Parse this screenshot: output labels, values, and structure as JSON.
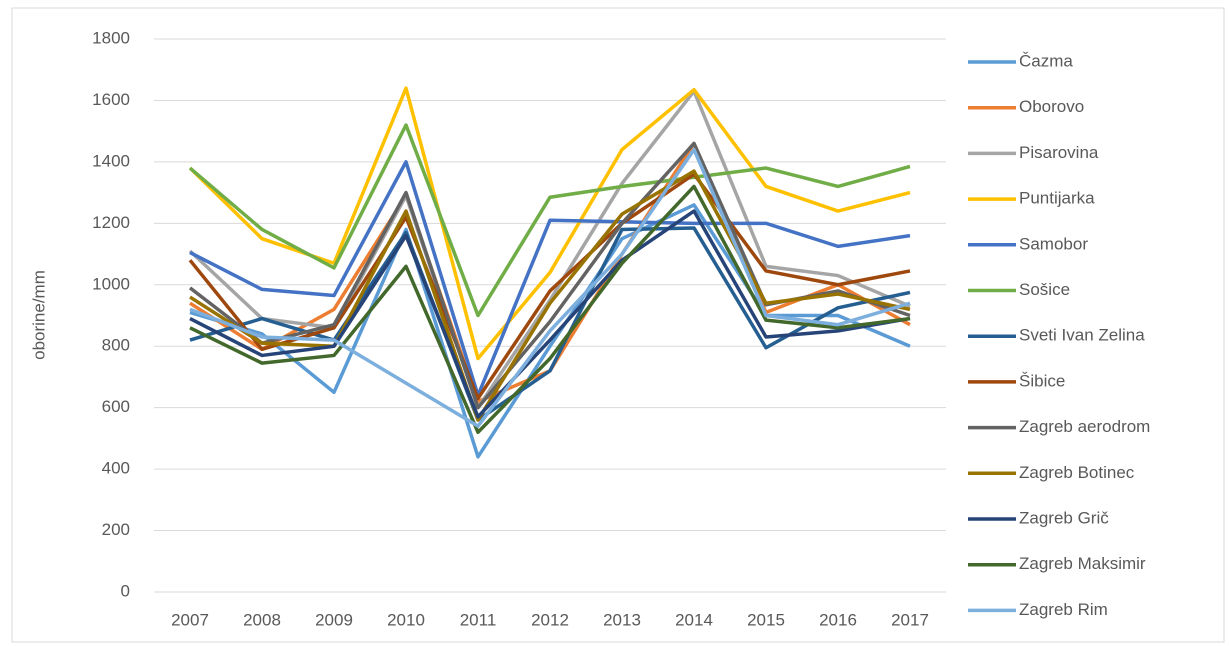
{
  "chart_data": {
    "type": "line",
    "y_label": "oborine/mm",
    "x": [
      "2007",
      "2008",
      "2009",
      "2010",
      "2011",
      "2012",
      "2013",
      "2014",
      "2015",
      "2016",
      "2017"
    ],
    "ylim": [
      0,
      1800
    ],
    "yticks": [
      0,
      200,
      400,
      600,
      800,
      1000,
      1200,
      1400,
      1600,
      1800
    ],
    "grid": true,
    "legend": "right",
    "series": [
      {
        "name": "Čazma",
        "color": "#5B9BD5",
        "values": [
          910,
          840,
          650,
          1180,
          440,
          800,
          1150,
          1260,
          900,
          900,
          800
        ]
      },
      {
        "name": "Oborovo",
        "color": "#ED7D31",
        "values": [
          940,
          790,
          920,
          1290,
          620,
          720,
          1100,
          1460,
          910,
          1000,
          870
        ]
      },
      {
        "name": "Pisarovina",
        "color": "#A5A5A5",
        "values": [
          1110,
          890,
          860,
          1290,
          600,
          950,
          1330,
          1630,
          1060,
          1030,
          930
        ]
      },
      {
        "name": "Puntijarka",
        "color": "#FFC000",
        "values": [
          1380,
          1150,
          1070,
          1640,
          760,
          1040,
          1440,
          1635,
          1320,
          1240,
          1300
        ]
      },
      {
        "name": "Samobor",
        "color": "#4472C4",
        "values": [
          1105,
          985,
          965,
          1400,
          640,
          1210,
          1205,
          1200,
          1200,
          1125,
          1160
        ]
      },
      {
        "name": "Sošice",
        "color": "#70AD47",
        "values": [
          1380,
          1180,
          1055,
          1520,
          900,
          1285,
          1320,
          1350,
          1380,
          1320,
          1385
        ]
      },
      {
        "name": "Sveti Ivan Zelina",
        "color": "#255E91",
        "values": [
          820,
          890,
          820,
          1170,
          560,
          720,
          1180,
          1185,
          795,
          925,
          975
        ]
      },
      {
        "name": "Šibice",
        "color": "#9E480E",
        "values": [
          1080,
          790,
          860,
          1220,
          630,
          980,
          1200,
          1360,
          1045,
          1000,
          1045
        ]
      },
      {
        "name": "Zagreb aerodrom",
        "color": "#636363",
        "values": [
          990,
          810,
          870,
          1300,
          600,
          880,
          1200,
          1460,
          935,
          980,
          900
        ]
      },
      {
        "name": "Zagreb Botinec",
        "color": "#997300",
        "values": [
          960,
          810,
          800,
          1240,
          560,
          940,
          1230,
          1370,
          940,
          970,
          920
        ]
      },
      {
        "name": "Zagreb Grič",
        "color": "#264478",
        "values": [
          890,
          770,
          800,
          1160,
          570,
          820,
          1080,
          1240,
          830,
          850,
          890
        ]
      },
      {
        "name": "Zagreb Maksimir",
        "color": "#43682B",
        "values": [
          860,
          745,
          770,
          1060,
          520,
          760,
          1070,
          1320,
          885,
          860,
          890
        ]
      },
      {
        "name": "Zagreb Rim",
        "color": "#7CAFDD",
        "values": [
          920,
          830,
          820,
          680,
          540,
          850,
          1100,
          1440,
          900,
          870,
          940
        ]
      }
    ]
  }
}
